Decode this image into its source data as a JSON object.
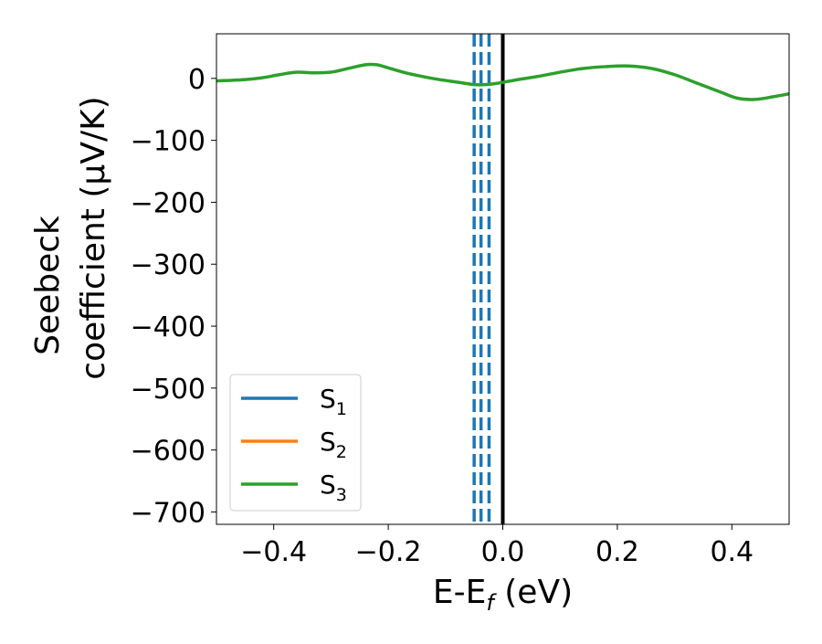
{
  "chart_data": {
    "type": "line",
    "title": "",
    "xlabel": "E-E",
    "xlabel_sub": "f",
    "xlabel_suffix": " (eV)",
    "ylabel_line1": "Seebeck",
    "ylabel_line2": "coefficient  (μV/K)",
    "xlim": [
      -0.5,
      0.5
    ],
    "ylim": [
      -720,
      72
    ],
    "xticks": [
      -0.4,
      -0.2,
      0.0,
      0.2,
      0.4
    ],
    "xtick_labels": [
      "−0.4",
      "−0.2",
      "0.0",
      "0.2",
      "0.4"
    ],
    "yticks": [
      0,
      -100,
      -200,
      -300,
      -400,
      -500,
      -600,
      -700
    ],
    "ytick_labels": [
      "0",
      "−100",
      "−200",
      "−300",
      "−400",
      "−500",
      "−600",
      "−700"
    ],
    "grid": false,
    "legend_position": "lower-left",
    "series": [
      {
        "name": "S",
        "name_sub": "1",
        "color": "#1f77b4",
        "x": [],
        "y": []
      },
      {
        "name": "S",
        "name_sub": "2",
        "color": "#ff7f0e",
        "x": [],
        "y": []
      },
      {
        "name": "S",
        "name_sub": "3",
        "color": "#2ca02c",
        "x": [
          -0.5,
          -0.45,
          -0.42,
          -0.39,
          -0.36,
          -0.33,
          -0.3,
          -0.27,
          -0.24,
          -0.22,
          -0.2,
          -0.17,
          -0.14,
          -0.11,
          -0.08,
          -0.05,
          -0.03,
          -0.01,
          0.02,
          0.06,
          0.1,
          0.14,
          0.18,
          0.22,
          0.26,
          0.3,
          0.34,
          0.38,
          0.41,
          0.44,
          0.47,
          0.5
        ],
        "y": [
          -4,
          -2,
          1,
          6,
          10,
          9,
          10,
          16,
          22,
          22,
          17,
          9,
          3,
          -2,
          -6,
          -10,
          -10,
          -8,
          -3,
          3,
          10,
          16,
          19,
          20,
          16,
          6,
          -8,
          -22,
          -32,
          -34,
          -30,
          -25
        ]
      }
    ],
    "vertical_lines": [
      {
        "x": -0.05,
        "color": "#1f77b4",
        "style": "dashed"
      },
      {
        "x": -0.038,
        "color": "#1f77b4",
        "style": "dashed"
      },
      {
        "x": -0.024,
        "color": "#1f77b4",
        "style": "dashed"
      },
      {
        "x": 0.0,
        "color": "#000000",
        "style": "solid"
      }
    ]
  }
}
